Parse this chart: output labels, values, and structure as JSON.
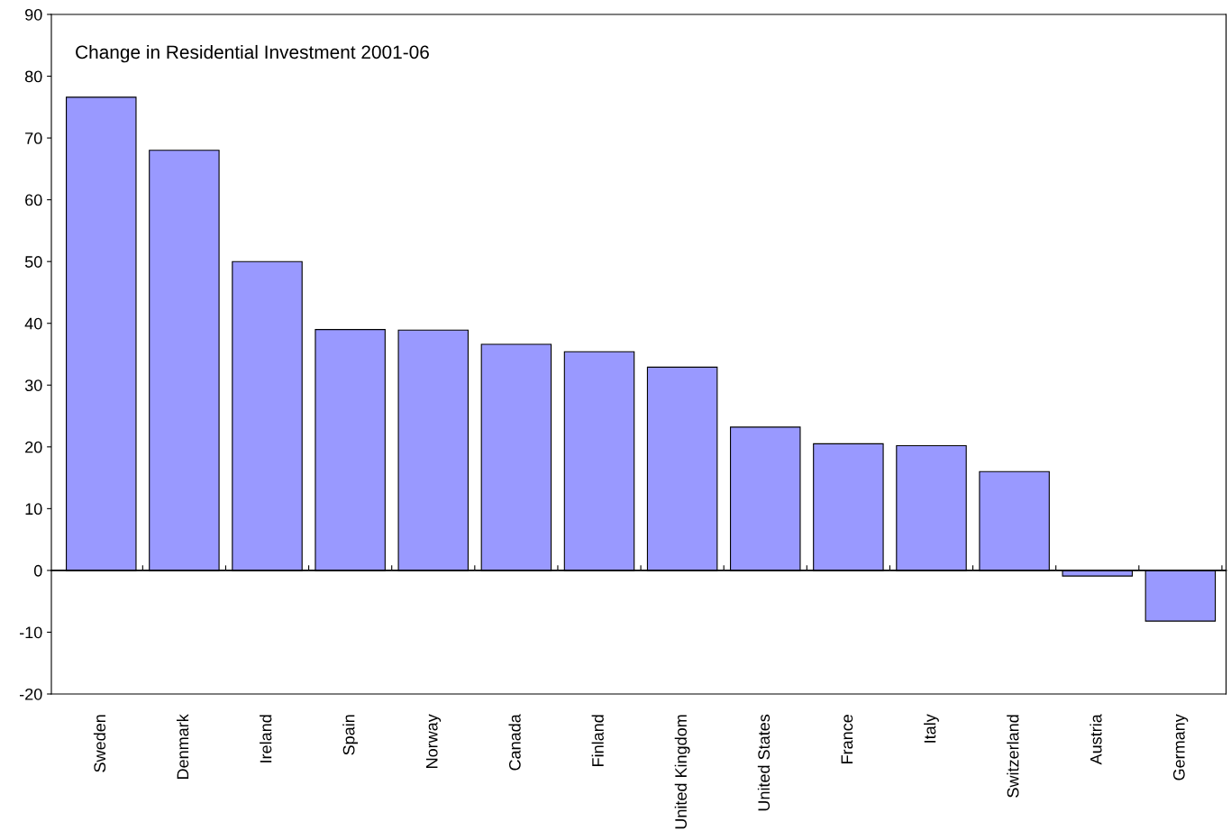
{
  "chart_data": {
    "type": "bar",
    "title": "Change in Residential Investment 2001-06",
    "categories": [
      "Sweden",
      "Denmark",
      "Ireland",
      "Spain",
      "Norway",
      "Canada",
      "Finland",
      "United Kingdom",
      "United States",
      "France",
      "Italy",
      "Switzerland",
      "Austria",
      "Germany"
    ],
    "values": [
      76.6,
      68.0,
      50.0,
      39.0,
      38.9,
      36.6,
      35.4,
      32.9,
      23.2,
      20.5,
      20.2,
      16.0,
      -0.9,
      -8.2
    ],
    "color": "#9999ff",
    "ylim": [
      -20,
      90
    ],
    "yticks": [
      -20,
      -10,
      0,
      10,
      20,
      30,
      40,
      50,
      60,
      70,
      80,
      90
    ],
    "legend": false
  }
}
